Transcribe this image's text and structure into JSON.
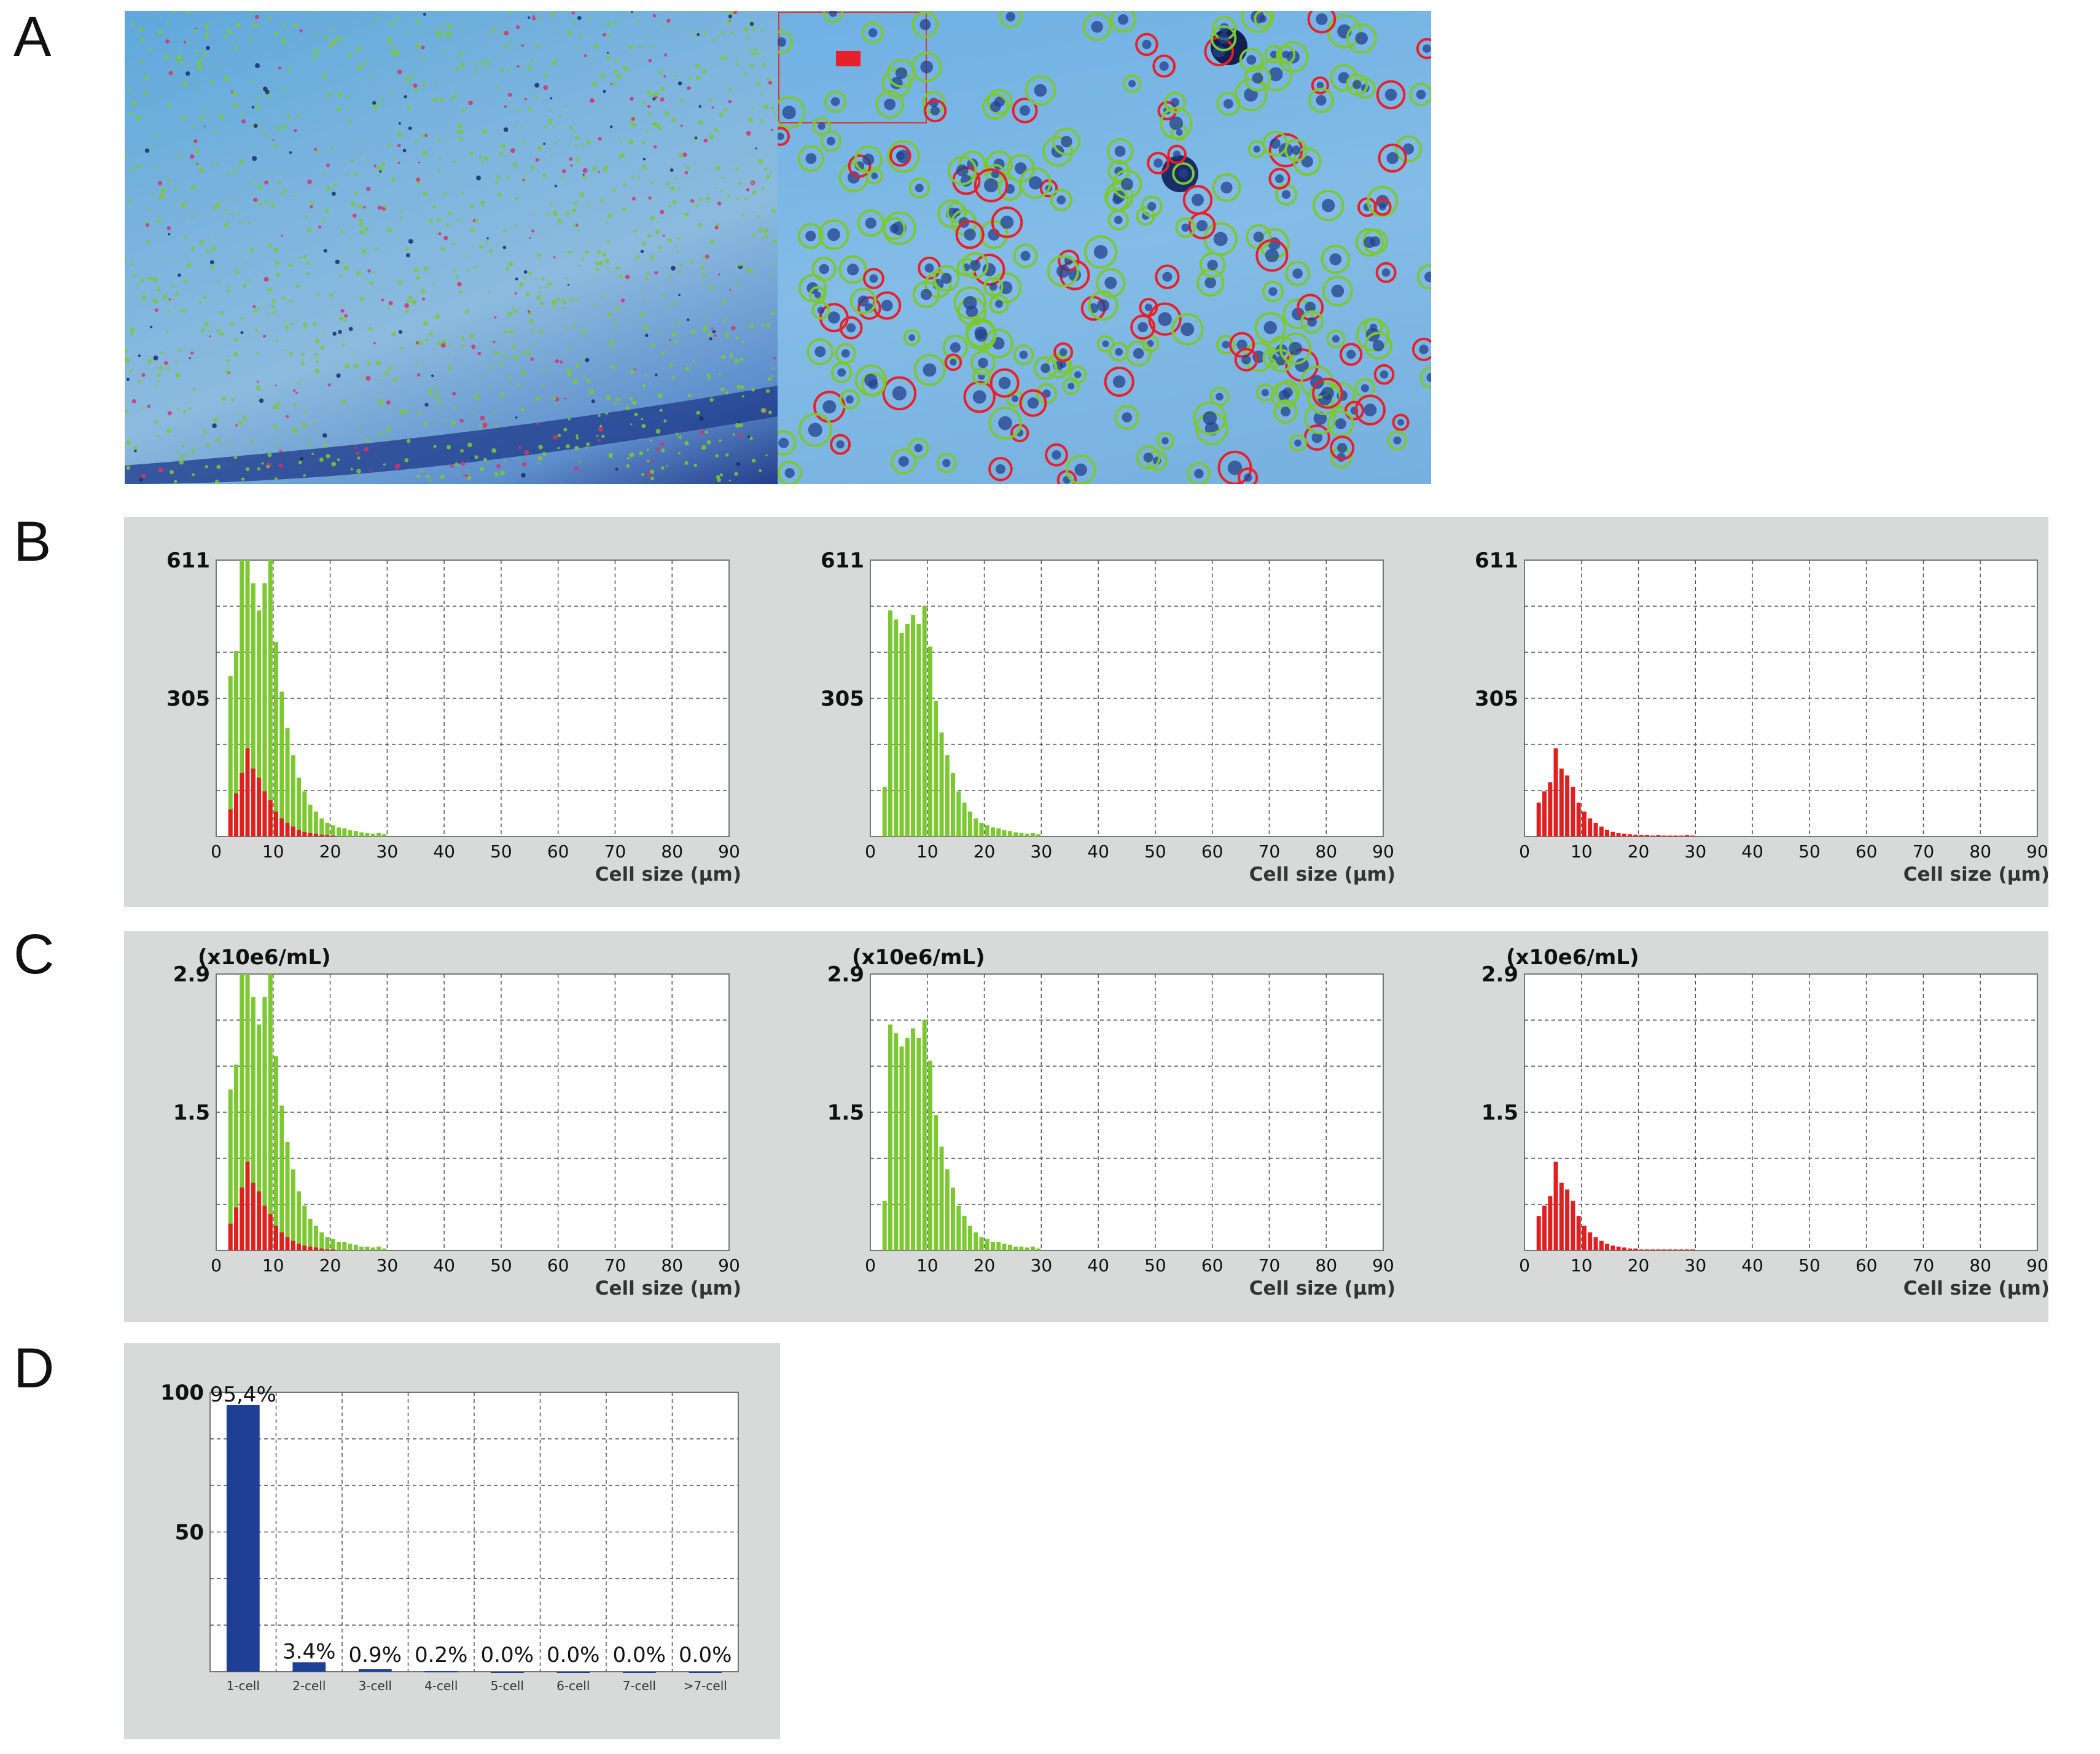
{
  "panels": {
    "a": "A",
    "b": "B",
    "c": "C",
    "d": "D"
  },
  "micrograph": {
    "overview_bg": "#74b1de",
    "zoom_bg": "#7ab7e3",
    "ring_green": "#7cc832",
    "ring_red": "#e8202a"
  },
  "chart_data": [
    {
      "panel": "B",
      "position": "left",
      "type": "bar",
      "xlabel": "Cell size (μm)",
      "ylabel": "",
      "ylim": [
        0,
        611
      ],
      "ytick_labels": [
        "611",
        "305"
      ],
      "xlim": [
        0,
        90
      ],
      "xticks": [
        0,
        10,
        20,
        30,
        40,
        50,
        60,
        70,
        80,
        90
      ],
      "grid": true,
      "series": [
        {
          "color": "#7cc832",
          "x": [
            2.5,
            3.5,
            4.5,
            5.5,
            6.5,
            7.5,
            8.5,
            9.5,
            10.5,
            11.5,
            12.5,
            13.5,
            14.5,
            15.5,
            16.5,
            17.5,
            18.5,
            19.5,
            20.5,
            21.5,
            22.5,
            23.5,
            24.5,
            25.5,
            26.5,
            27.5,
            28.5,
            29.5
          ],
          "values": [
            355,
            410,
            611,
            611,
            560,
            500,
            560,
            611,
            430,
            320,
            240,
            180,
            130,
            100,
            70,
            55,
            40,
            30,
            25,
            20,
            18,
            14,
            12,
            9,
            8,
            6,
            8,
            5
          ]
        },
        {
          "color": "#e02020",
          "x": [
            2.5,
            3.5,
            4.5,
            5.5,
            6.5,
            7.5,
            8.5,
            9.5,
            10.5,
            11.5,
            12.5,
            13.5,
            14.5,
            15.5,
            16.5,
            17.5,
            18.5,
            19.5,
            20.5
          ],
          "values": [
            60,
            95,
            140,
            195,
            150,
            130,
            100,
            80,
            55,
            40,
            30,
            22,
            15,
            10,
            8,
            6,
            4,
            3,
            2
          ]
        }
      ]
    },
    {
      "panel": "B",
      "position": "middle",
      "type": "bar",
      "xlabel": "Cell size (μm)",
      "ylabel": "",
      "ylim": [
        0,
        611
      ],
      "ytick_labels": [
        "611",
        "305"
      ],
      "xlim": [
        0,
        90
      ],
      "xticks": [
        0,
        10,
        20,
        30,
        40,
        50,
        60,
        70,
        80,
        90
      ],
      "grid": true,
      "series": [
        {
          "color": "#7cc832",
          "x": [
            2.5,
            3.5,
            4.5,
            5.5,
            6.5,
            7.5,
            8.5,
            9.5,
            10.5,
            11.5,
            12.5,
            13.5,
            14.5,
            15.5,
            16.5,
            17.5,
            18.5,
            19.5,
            20.5,
            21.5,
            22.5,
            23.5,
            24.5,
            25.5,
            26.5,
            27.5,
            28.5,
            29.5
          ],
          "values": [
            110,
            500,
            480,
            450,
            470,
            490,
            470,
            510,
            420,
            300,
            230,
            180,
            140,
            100,
            75,
            55,
            40,
            30,
            25,
            20,
            18,
            14,
            12,
            9,
            8,
            6,
            8,
            5
          ]
        }
      ]
    },
    {
      "panel": "B",
      "position": "right",
      "type": "bar",
      "xlabel": "Cell size (μm)",
      "ylabel": "",
      "ylim": [
        0,
        611
      ],
      "ytick_labels": [
        "611",
        "305"
      ],
      "xlim": [
        0,
        90
      ],
      "xticks": [
        0,
        10,
        20,
        30,
        40,
        50,
        60,
        70,
        80,
        90
      ],
      "grid": true,
      "series": [
        {
          "color": "#e02020",
          "x": [
            2.5,
            3.5,
            4.5,
            5.5,
            6.5,
            7.5,
            8.5,
            9.5,
            10.5,
            11.5,
            12.5,
            13.5,
            14.5,
            15.5,
            16.5,
            17.5,
            18.5,
            19.5,
            20.5,
            21.5,
            22.5,
            23.5,
            24.5,
            25.5,
            26.5,
            27.5,
            28.5,
            29.5
          ],
          "values": [
            75,
            100,
            120,
            195,
            150,
            135,
            110,
            75,
            55,
            40,
            30,
            22,
            15,
            10,
            8,
            6,
            5,
            4,
            3,
            3,
            2,
            3,
            2,
            2,
            2,
            2,
            3,
            2
          ]
        }
      ]
    },
    {
      "panel": "C",
      "position": "left",
      "type": "bar",
      "xlabel": "Cell size (μm)",
      "ylabel": "(x10e6/mL)",
      "ylim": [
        0,
        2.9
      ],
      "ytick_labels": [
        "2.9",
        "1.5"
      ],
      "xlim": [
        0,
        90
      ],
      "xticks": [
        0,
        10,
        20,
        30,
        40,
        50,
        60,
        70,
        80,
        90
      ],
      "grid": true,
      "series": [
        {
          "color": "#7cc832",
          "x": [
            2.5,
            3.5,
            4.5,
            5.5,
            6.5,
            7.5,
            8.5,
            9.5,
            10.5,
            11.5,
            12.5,
            13.5,
            14.5,
            15.5,
            16.5,
            17.5,
            18.5,
            19.5,
            20.5,
            21.5,
            22.5,
            23.5,
            24.5,
            25.5,
            26.5,
            27.5,
            28.5,
            29.5
          ],
          "values": [
            1.69,
            1.95,
            2.9,
            2.9,
            2.66,
            2.37,
            2.66,
            2.9,
            2.04,
            1.52,
            1.14,
            0.85,
            0.62,
            0.47,
            0.33,
            0.26,
            0.19,
            0.14,
            0.12,
            0.09,
            0.09,
            0.07,
            0.06,
            0.04,
            0.04,
            0.03,
            0.04,
            0.02
          ]
        },
        {
          "color": "#e02020",
          "x": [
            2.5,
            3.5,
            4.5,
            5.5,
            6.5,
            7.5,
            8.5,
            9.5,
            10.5,
            11.5,
            12.5,
            13.5,
            14.5,
            15.5,
            16.5,
            17.5,
            18.5,
            19.5,
            20.5
          ],
          "values": [
            0.28,
            0.45,
            0.66,
            0.93,
            0.71,
            0.62,
            0.47,
            0.38,
            0.26,
            0.19,
            0.14,
            0.1,
            0.07,
            0.05,
            0.04,
            0.03,
            0.02,
            0.01,
            0.01
          ]
        }
      ]
    },
    {
      "panel": "C",
      "position": "middle",
      "type": "bar",
      "xlabel": "Cell size (μm)",
      "ylabel": "(x10e6/mL)",
      "ylim": [
        0,
        2.9
      ],
      "ytick_labels": [
        "2.9",
        "1.5"
      ],
      "xlim": [
        0,
        90
      ],
      "xticks": [
        0,
        10,
        20,
        30,
        40,
        50,
        60,
        70,
        80,
        90
      ],
      "grid": true,
      "series": [
        {
          "color": "#7cc832",
          "x": [
            2.5,
            3.5,
            4.5,
            5.5,
            6.5,
            7.5,
            8.5,
            9.5,
            10.5,
            11.5,
            12.5,
            13.5,
            14.5,
            15.5,
            16.5,
            17.5,
            18.5,
            19.5,
            20.5,
            21.5,
            22.5,
            23.5,
            24.5,
            25.5,
            26.5,
            27.5,
            28.5,
            29.5
          ],
          "values": [
            0.52,
            2.37,
            2.28,
            2.14,
            2.23,
            2.33,
            2.23,
            2.42,
            1.99,
            1.42,
            1.09,
            0.85,
            0.66,
            0.47,
            0.36,
            0.26,
            0.19,
            0.14,
            0.12,
            0.09,
            0.09,
            0.07,
            0.06,
            0.04,
            0.04,
            0.03,
            0.04,
            0.02
          ]
        }
      ]
    },
    {
      "panel": "C",
      "position": "right",
      "type": "bar",
      "xlabel": "Cell size (μm)",
      "ylabel": "(x10e6/mL)",
      "ylim": [
        0,
        2.9
      ],
      "ytick_labels": [
        "2.9",
        "1.5"
      ],
      "xlim": [
        0,
        90
      ],
      "xticks": [
        0,
        10,
        20,
        30,
        40,
        50,
        60,
        70,
        80,
        90
      ],
      "grid": true,
      "series": [
        {
          "color": "#e02020",
          "x": [
            2.5,
            3.5,
            4.5,
            5.5,
            6.5,
            7.5,
            8.5,
            9.5,
            10.5,
            11.5,
            12.5,
            13.5,
            14.5,
            15.5,
            16.5,
            17.5,
            18.5,
            19.5,
            20.5,
            21.5,
            22.5,
            23.5,
            24.5,
            25.5,
            26.5,
            27.5,
            28.5,
            29.5
          ],
          "values": [
            0.36,
            0.47,
            0.57,
            0.93,
            0.71,
            0.64,
            0.52,
            0.36,
            0.26,
            0.19,
            0.14,
            0.1,
            0.07,
            0.05,
            0.04,
            0.03,
            0.02,
            0.02,
            0.01,
            0.01,
            0.01,
            0.01,
            0.01,
            0.01,
            0.01,
            0.01,
            0.01,
            0.01
          ]
        }
      ]
    },
    {
      "panel": "D",
      "type": "bar",
      "xlabel": "",
      "ylabel": "",
      "ylim": [
        0,
        100
      ],
      "ytick_labels": [
        "100",
        "50"
      ],
      "grid": true,
      "categories": [
        "1-cell",
        "2-cell",
        "3-cell",
        "4-cell",
        "5-cell",
        "6-cell",
        "7-cell",
        ">7-cell"
      ],
      "values": [
        95.4,
        3.4,
        0.9,
        0.2,
        0.0,
        0.0,
        0.0,
        0.0
      ],
      "data_labels": [
        "95,4%",
        "3.4%",
        "0.9%",
        "0.2%",
        "0.0%",
        "0.0%",
        "0.0%",
        "0.0%"
      ],
      "color": "#1f3f94"
    }
  ]
}
